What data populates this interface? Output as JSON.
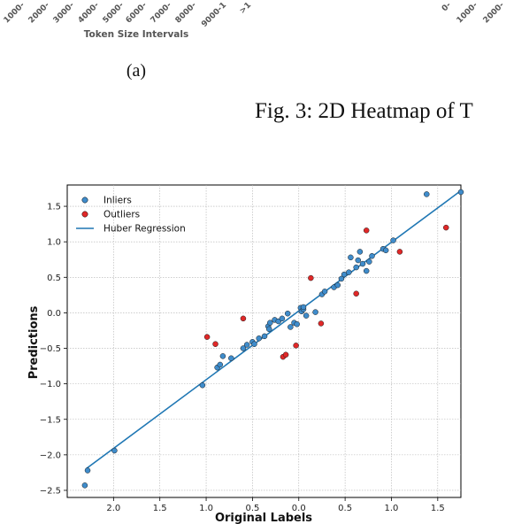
{
  "top_fragment": {
    "left_ticks": [
      "1000-",
      "2000-",
      "3000-",
      "4000-",
      "5000-",
      "6000-",
      "7000-",
      "8000-",
      "9000-1",
      ">1"
    ],
    "right_ticks": [
      "0-",
      "1000-",
      "2000-"
    ],
    "xlabel": "Token Size Intervals",
    "subcaption": "(a)",
    "figure_caption": "Fig. 3: 2D Heatmap of T"
  },
  "colors": {
    "inlier": "#3f8ccb",
    "outlier": "#e02828",
    "line": "#1f77b4",
    "grid": "#b0b0b0"
  },
  "chart_data": {
    "type": "scatter",
    "xlabel": "Original Labels",
    "ylabel": "Predictions",
    "xlim": [
      2.5,
      -1.75
    ],
    "ylim": [
      -2.6,
      1.8
    ],
    "x_inverted": true,
    "grid": true,
    "legend_placement": "top-left",
    "x_ticks": [
      2.0,
      1.5,
      1.0,
      0.5,
      0.0,
      -0.5,
      -1.0,
      -1.5
    ],
    "x_tick_labels": [
      "2.0",
      "1.5",
      "1.0",
      "0.5",
      "0.0",
      "0.5",
      "1.0",
      "1.5"
    ],
    "y_ticks": [
      1.5,
      1.0,
      0.5,
      0.0,
      -0.5,
      -1.0,
      -1.5,
      -2.0,
      -2.5
    ],
    "y_tick_labels": [
      "1.5",
      "1.0",
      "0.5",
      "0.0",
      "−0.5",
      "−1.0",
      "−1.5",
      "−2.0",
      "−2.5"
    ],
    "series": [
      {
        "name": "Inliers",
        "points": [
          [
            2.31,
            -2.43
          ],
          [
            2.28,
            -2.22
          ],
          [
            1.99,
            -1.94
          ],
          [
            1.04,
            -1.02
          ],
          [
            0.88,
            -0.77
          ],
          [
            0.85,
            -0.73
          ],
          [
            0.82,
            -0.61
          ],
          [
            0.73,
            -0.64
          ],
          [
            0.6,
            -0.5
          ],
          [
            0.56,
            -0.45
          ],
          [
            0.5,
            -0.41
          ],
          [
            0.48,
            -0.44
          ],
          [
            0.43,
            -0.36
          ],
          [
            0.37,
            -0.33
          ],
          [
            0.33,
            -0.19
          ],
          [
            0.32,
            -0.23
          ],
          [
            0.31,
            -0.14
          ],
          [
            0.26,
            -0.1
          ],
          [
            0.22,
            -0.12
          ],
          [
            0.18,
            -0.08
          ],
          [
            0.12,
            -0.01
          ],
          [
            0.09,
            -0.2
          ],
          [
            0.05,
            -0.14
          ],
          [
            0.02,
            -0.16
          ],
          [
            -0.02,
            0.07
          ],
          [
            -0.03,
            0.02
          ],
          [
            -0.05,
            0.05
          ],
          [
            -0.05,
            0.08
          ],
          [
            -0.08,
            -0.04
          ],
          [
            -0.18,
            0.01
          ],
          [
            -0.25,
            0.26
          ],
          [
            -0.28,
            0.3
          ],
          [
            -0.38,
            0.36
          ],
          [
            -0.42,
            0.39
          ],
          [
            -0.46,
            0.48
          ],
          [
            -0.49,
            0.54
          ],
          [
            -0.54,
            0.57
          ],
          [
            -0.56,
            0.78
          ],
          [
            -0.62,
            0.64
          ],
          [
            -0.64,
            0.74
          ],
          [
            -0.66,
            0.86
          ],
          [
            -0.69,
            0.69
          ],
          [
            -0.73,
            0.59
          ],
          [
            -0.76,
            0.72
          ],
          [
            -0.79,
            0.8
          ],
          [
            -0.91,
            0.9
          ],
          [
            -0.94,
            0.88
          ],
          [
            -1.02,
            1.02
          ],
          [
            -1.38,
            1.67
          ],
          [
            -1.75,
            1.7
          ]
        ]
      },
      {
        "name": "Outliers",
        "points": [
          [
            0.99,
            -0.34
          ],
          [
            0.9,
            -0.44
          ],
          [
            0.6,
            -0.08
          ],
          [
            0.17,
            -0.62
          ],
          [
            0.14,
            -0.59
          ],
          [
            0.03,
            -0.46
          ],
          [
            -0.13,
            0.49
          ],
          [
            -0.24,
            -0.15
          ],
          [
            -0.62,
            0.27
          ],
          [
            -0.73,
            1.16
          ],
          [
            -1.09,
            0.86
          ],
          [
            -1.59,
            1.2
          ]
        ]
      }
    ],
    "regression": {
      "name": "Huber Regression",
      "x": [
        2.3,
        -1.75
      ],
      "y": [
        -2.2,
        1.72
      ]
    }
  }
}
